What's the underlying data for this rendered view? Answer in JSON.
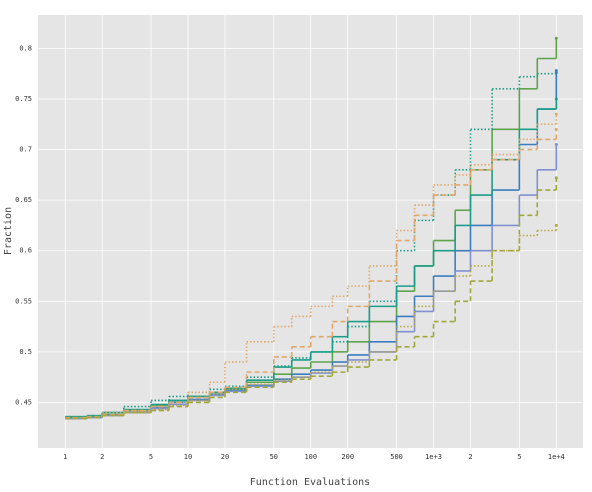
{
  "chart_data": {
    "type": "step",
    "x_label": "Function Evaluations",
    "y_label": "Fraction",
    "xscale": "log",
    "grid": true,
    "xlim": [
      0.6,
      16500
    ],
    "ylim": [
      0.405,
      0.833
    ],
    "xticks": [
      1,
      2,
      5,
      10,
      20,
      50,
      100,
      200,
      500,
      {
        "value": 1000,
        "label": "1e+3"
      },
      {
        "value": 2000,
        "label": "2"
      },
      {
        "value": 5000,
        "label": "5"
      },
      {
        "value": 10000,
        "label": "1e+4"
      }
    ],
    "yticks": [
      0.45,
      0.5,
      0.55,
      0.6,
      0.65,
      0.7,
      0.75,
      0.8
    ],
    "x": [
      1,
      1.5,
      2,
      3,
      5,
      7,
      10,
      15,
      20,
      30,
      50,
      70,
      100,
      150,
      200,
      300,
      500,
      700,
      1000,
      1500,
      2000,
      3000,
      5000,
      7000,
      10000
    ],
    "series": [
      {
        "color": "#5fa34c",
        "dash": "solid",
        "values": [
          0.435,
          0.436,
          0.44,
          0.442,
          0.447,
          0.452,
          0.456,
          0.46,
          0.463,
          0.47,
          0.478,
          0.484,
          0.49,
          0.5,
          0.51,
          0.53,
          0.56,
          0.585,
          0.61,
          0.64,
          0.68,
          0.72,
          0.76,
          0.79,
          0.81
        ]
      },
      {
        "color": "#1b9e89",
        "dash": "dotted",
        "values": [
          0.436,
          0.436,
          0.44,
          0.446,
          0.452,
          0.456,
          0.46,
          0.463,
          0.466,
          0.475,
          0.486,
          0.494,
          0.5,
          0.51,
          0.525,
          0.55,
          0.6,
          0.63,
          0.655,
          0.68,
          0.72,
          0.76,
          0.772,
          0.775,
          0.776
        ]
      },
      {
        "color": "#3a7ebf",
        "dash": "solid",
        "values": [
          0.434,
          0.435,
          0.438,
          0.44,
          0.445,
          0.45,
          0.453,
          0.458,
          0.462,
          0.467,
          0.473,
          0.478,
          0.482,
          0.49,
          0.497,
          0.51,
          0.535,
          0.555,
          0.575,
          0.6,
          0.625,
          0.66,
          0.705,
          0.74,
          0.778
        ]
      },
      {
        "color": "#1b9e89",
        "dash": "solid",
        "values": [
          0.436,
          0.437,
          0.44,
          0.443,
          0.448,
          0.452,
          0.456,
          0.46,
          0.464,
          0.472,
          0.485,
          0.492,
          0.5,
          0.515,
          0.53,
          0.545,
          0.565,
          0.585,
          0.6,
          0.625,
          0.655,
          0.69,
          0.72,
          0.74,
          0.75
        ]
      },
      {
        "color": "#e0a86c",
        "dash": "dotted",
        "values": [
          0.435,
          0.436,
          0.44,
          0.442,
          0.446,
          0.45,
          0.46,
          0.47,
          0.49,
          0.51,
          0.525,
          0.535,
          0.545,
          0.555,
          0.565,
          0.585,
          0.62,
          0.645,
          0.665,
          0.675,
          0.685,
          0.695,
          0.71,
          0.725,
          0.735
        ]
      },
      {
        "color": "#e0a86c",
        "dash": "dashed",
        "values": [
          0.435,
          0.436,
          0.438,
          0.442,
          0.446,
          0.45,
          0.455,
          0.46,
          0.465,
          0.48,
          0.495,
          0.505,
          0.515,
          0.53,
          0.545,
          0.57,
          0.61,
          0.635,
          0.655,
          0.665,
          0.68,
          0.69,
          0.7,
          0.71,
          0.72
        ]
      },
      {
        "color": "#8090d0",
        "dash": "solid",
        "values": [
          0.434,
          0.435,
          0.437,
          0.44,
          0.444,
          0.448,
          0.452,
          0.457,
          0.461,
          0.466,
          0.471,
          0.475,
          0.479,
          0.486,
          0.492,
          0.5,
          0.52,
          0.54,
          0.56,
          0.58,
          0.6,
          0.625,
          0.655,
          0.68,
          0.705
        ]
      },
      {
        "color": "#9fa83c",
        "dash": "dashed",
        "values": [
          0.434,
          0.435,
          0.437,
          0.44,
          0.442,
          0.446,
          0.45,
          0.455,
          0.46,
          0.465,
          0.47,
          0.473,
          0.476,
          0.48,
          0.485,
          0.492,
          0.505,
          0.515,
          0.53,
          0.55,
          0.57,
          0.6,
          0.635,
          0.66,
          0.672
        ]
      },
      {
        "color": "#b8a844",
        "dash": "dotted",
        "values": [
          0.435,
          0.436,
          0.438,
          0.44,
          0.443,
          0.447,
          0.452,
          0.458,
          0.463,
          0.468,
          0.472,
          0.475,
          0.48,
          0.486,
          0.49,
          0.5,
          0.525,
          0.545,
          0.56,
          0.575,
          0.585,
          0.6,
          0.615,
          0.62,
          0.625
        ]
      }
    ]
  }
}
